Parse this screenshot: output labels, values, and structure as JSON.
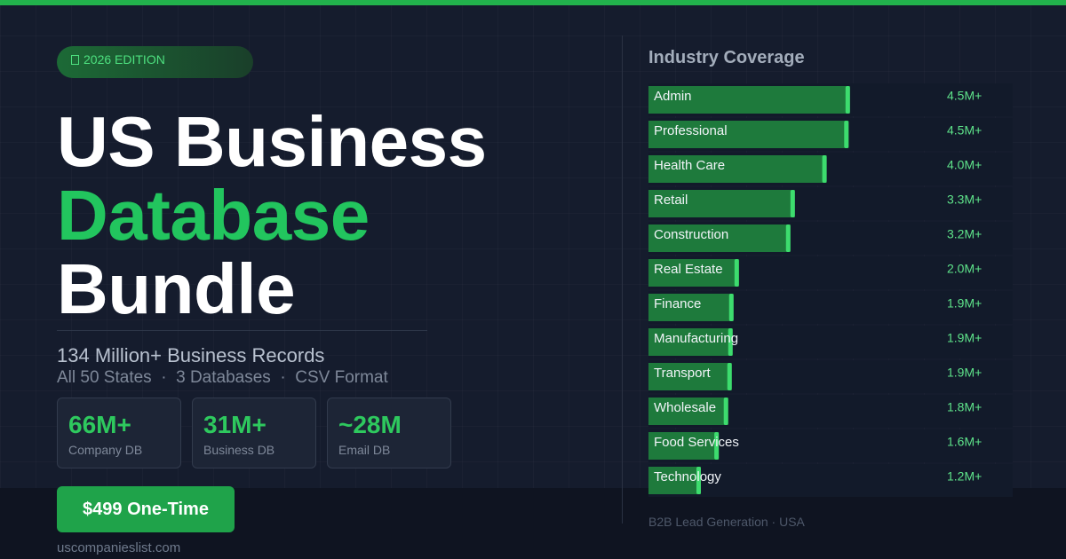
{
  "header": {
    "badge": "2026 EDITION",
    "title_line_1": "US Business",
    "title_line_2": "Database",
    "title_line_3": "Bundle",
    "subtitle": "134 Million+ Business Records",
    "details": "All 50 States  ·  3 Databases  ·  CSV Format"
  },
  "stats": [
    {
      "value": "66M+",
      "label": "Company DB"
    },
    {
      "value": "31M+",
      "label": "Business DB"
    },
    {
      "value": "~28M",
      "label": "Email DB"
    }
  ],
  "cta": "$499 One-Time",
  "url": "uscompanieslist.com",
  "chart_data": {
    "type": "bar",
    "orientation": "horizontal",
    "title": "Industry Coverage",
    "categories": [
      "Admin",
      "Professional",
      "Health Care",
      "Retail",
      "Construction",
      "Real Estate",
      "Finance",
      "Manufacturing",
      "Transport",
      "Wholesale",
      "Food Services",
      "Technology"
    ],
    "values": [
      4.5,
      4.47,
      3.98,
      3.27,
      3.17,
      2.02,
      1.9,
      1.88,
      1.86,
      1.78,
      1.57,
      1.17
    ],
    "value_labels": [
      "4.5M+",
      "4.5M+",
      "4.0M+",
      "3.3M+",
      "3.2M+",
      "2.0M+",
      "1.9M+",
      "1.9M+",
      "1.9M+",
      "1.8M+",
      "1.6M+",
      "1.2M+"
    ],
    "color": "#1e7a3c",
    "tip_color": "#3ddc6e"
  },
  "footer": "B2B Lead Generation · USA"
}
